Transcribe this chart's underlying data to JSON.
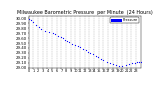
{
  "title": "Milwaukee Barometric Pressure  per Minute  (24 Hours)",
  "title_fontsize": 3.5,
  "background_color": "#ffffff",
  "plot_bg_color": "#ffffff",
  "grid_color": "#aaaaaa",
  "dot_color": "#0000ff",
  "legend_color": "#0000ff",
  "dot_size": 0.8,
  "ylim": [
    29.0,
    30.05
  ],
  "xlim": [
    0,
    1440
  ],
  "ylabel_fontsize": 2.8,
  "xlabel_fontsize": 2.5,
  "ytick_labels": [
    "29.00",
    "29.10",
    "29.20",
    "29.30",
    "29.40",
    "29.50",
    "29.60",
    "29.70",
    "29.80",
    "29.90",
    "30.00"
  ],
  "ytick_values": [
    29.0,
    29.1,
    29.2,
    29.3,
    29.4,
    29.5,
    29.6,
    29.7,
    29.8,
    29.9,
    30.0
  ],
  "xtick_positions": [
    0,
    60,
    120,
    180,
    240,
    300,
    360,
    420,
    480,
    540,
    600,
    660,
    720,
    780,
    840,
    900,
    960,
    1020,
    1080,
    1140,
    1200,
    1260,
    1320,
    1380
  ],
  "xtick_labels": [
    "0",
    "1",
    "2",
    "3",
    "4",
    "5",
    "6",
    "7",
    "8",
    "9",
    "10",
    "11",
    "12",
    "13",
    "14",
    "15",
    "16",
    "17",
    "18",
    "19",
    "20",
    "21",
    "22",
    "23"
  ],
  "data_x": [
    5,
    30,
    60,
    90,
    130,
    160,
    210,
    260,
    310,
    340,
    380,
    410,
    440,
    460,
    490,
    520,
    560,
    590,
    630,
    660,
    700,
    730,
    760,
    790,
    820,
    860,
    890,
    930,
    960,
    1000,
    1040,
    1080,
    1120,
    1160,
    1200,
    1250,
    1290,
    1330,
    1360,
    1390,
    1420,
    1440
  ],
  "data_y": [
    29.98,
    29.96,
    29.92,
    29.87,
    29.82,
    29.78,
    29.75,
    29.72,
    29.7,
    29.68,
    29.65,
    29.62,
    29.6,
    29.57,
    29.55,
    29.52,
    29.49,
    29.46,
    29.44,
    29.41,
    29.38,
    29.35,
    29.32,
    29.29,
    29.27,
    29.24,
    29.21,
    29.18,
    29.15,
    29.12,
    29.09,
    29.07,
    29.05,
    29.04,
    29.04,
    29.05,
    29.07,
    29.09,
    29.1,
    29.11,
    29.12,
    29.12
  ]
}
